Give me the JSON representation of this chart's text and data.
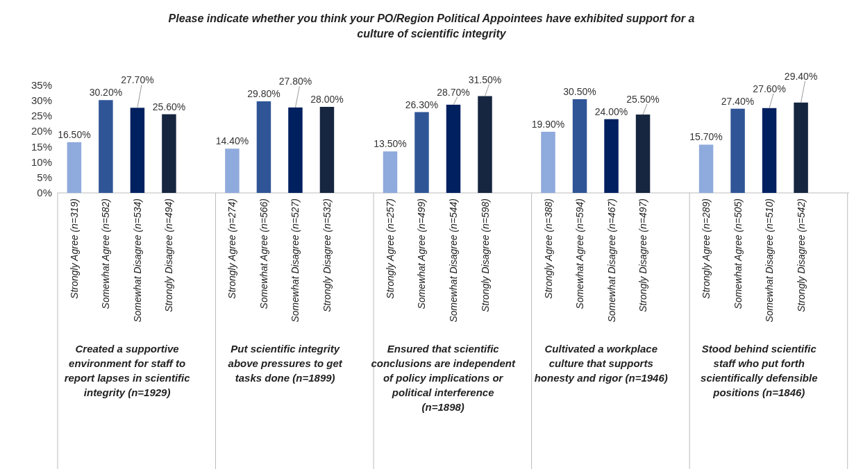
{
  "chart_data": {
    "type": "bar",
    "title": "Please indicate whether you think your PO/Region Political Appointees have exhibited support for a culture of scientific integrity",
    "categories": [
      "Strongly Agree (n=319)",
      "Somewhat Agree (n=582)",
      "Somewhat Disagree (n=534)",
      "Strongly Disagree (n=494)",
      null,
      "Strongly Agree (n=274)",
      "Somewhat Agree (n=566)",
      "Somewhat Disagree (n=527)",
      "Strongly Disagree (n=532)",
      null,
      "Strongly Agree (n=257)",
      "Somewhat Agree (n=499)",
      "Somewhat Disagree (n=544)",
      "Strongly Disagree (n=598)",
      null,
      "Strongly Agree (n=388)",
      "Somewhat Agree (n=594)",
      "Somewhat Disagree (n=467)",
      "Strongly Disagree (n=497)",
      null,
      "Strongly Agree (n=289)",
      "Somewhat Agree (n=505)",
      "Somewhat Disagree (n=510)",
      "Strongly Disagree (n=542)",
      null
    ],
    "values": [
      16.5,
      30.2,
      27.7,
      25.6,
      null,
      14.4,
      29.8,
      27.8,
      28.0,
      null,
      13.5,
      26.3,
      28.7,
      31.5,
      null,
      19.9,
      30.5,
      24.0,
      25.5,
      null,
      15.7,
      27.4,
      27.6,
      29.4,
      null
    ],
    "value_labels": [
      "16.50%",
      "30.20%",
      "27.70%",
      "25.60%",
      null,
      "14.40%",
      "29.80%",
      "27.80%",
      "28.00%",
      null,
      "13.50%",
      "26.30%",
      "28.70%",
      "31.50%",
      null,
      "19.90%",
      "30.50%",
      "24.00%",
      "25.50%",
      null,
      "15.70%",
      "27.40%",
      "27.60%",
      "29.40%",
      null
    ],
    "colors": [
      "#8faadc",
      "#2f5597",
      "#002060",
      "#162640",
      null,
      "#8faadc",
      "#2f5597",
      "#002060",
      "#162640",
      null,
      "#8faadc",
      "#2f5597",
      "#002060",
      "#162640",
      null,
      "#8faadc",
      "#2f5597",
      "#002060",
      "#162640",
      null,
      "#8faadc",
      "#2f5597",
      "#002060",
      "#162640",
      null
    ],
    "ylim": [
      0,
      35
    ],
    "yticks": [
      {
        "value": 0,
        "label": "0%"
      },
      {
        "value": 5,
        "label": "5%"
      },
      {
        "value": 10,
        "label": "10%"
      },
      {
        "value": 15,
        "label": "15%"
      },
      {
        "value": 20,
        "label": "20%"
      },
      {
        "value": 25,
        "label": "25%"
      },
      {
        "value": 30,
        "label": "30%"
      },
      {
        "value": 35,
        "label": "35%"
      }
    ],
    "annotations": [
      "Created a supportive environment for staff to report lapses in scientific integrity (n=1929)",
      "Put scientific integrity above pressures to get tasks done (n=1899)",
      "Ensured that scientific conclusions are independent of policy implications or political interference (n=1898)",
      "Cultivated a workplace culture that supports honesty and rigor (n=1946)",
      "Stood behind scientific staff who put forth scientifically defensible positions (n=1846)"
    ],
    "grid": false
  }
}
